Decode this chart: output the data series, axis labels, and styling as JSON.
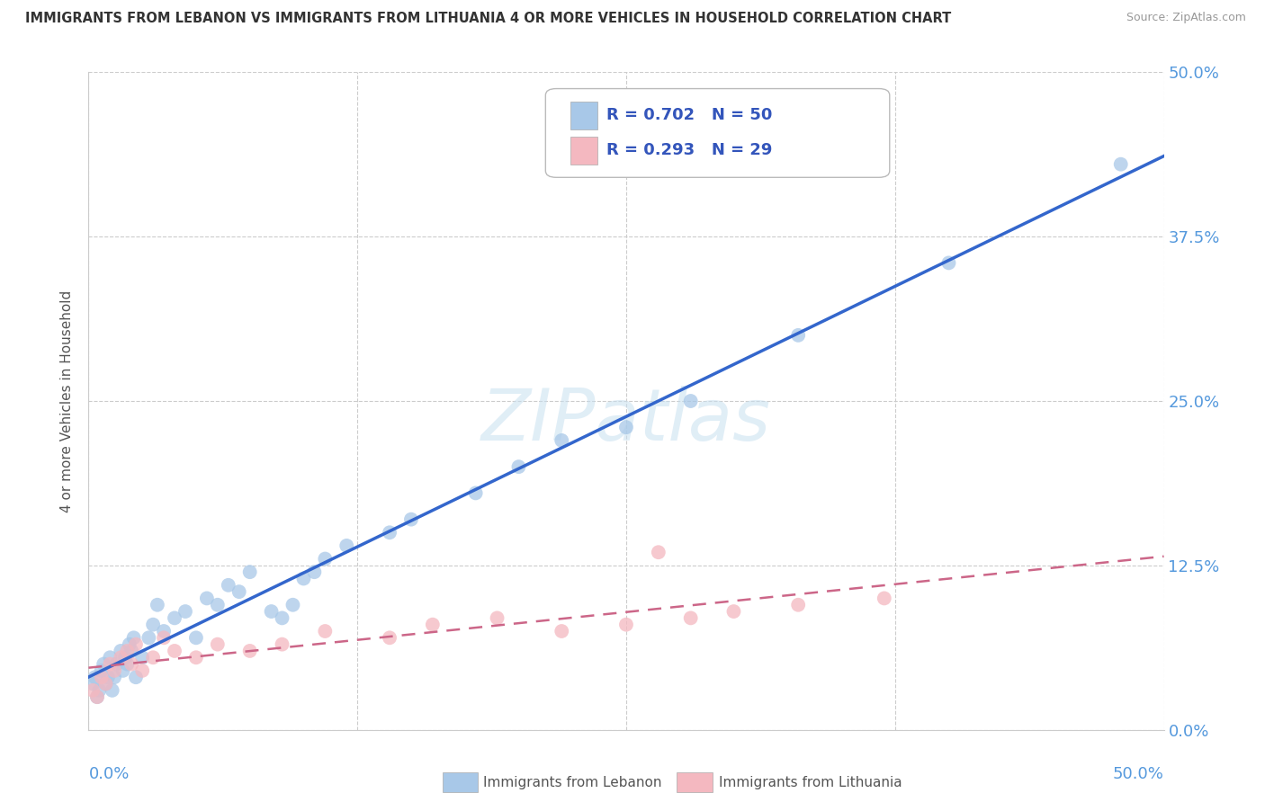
{
  "title": "IMMIGRANTS FROM LEBANON VS IMMIGRANTS FROM LITHUANIA 4 OR MORE VEHICLES IN HOUSEHOLD CORRELATION CHART",
  "source": "Source: ZipAtlas.com",
  "ylabel": "4 or more Vehicles in Household",
  "ytick_vals": [
    0,
    12.5,
    25.0,
    37.5,
    50.0
  ],
  "xrange": [
    0,
    50
  ],
  "yrange": [
    0,
    50
  ],
  "legend_lebanon_R": "0.702",
  "legend_lebanon_N": "50",
  "legend_lithuania_R": "0.293",
  "legend_lithuania_N": "29",
  "legend_label_lebanon": "Immigrants from Lebanon",
  "legend_label_lithuania": "Immigrants from Lithuania",
  "color_lebanon": "#a8c8e8",
  "color_lithuania": "#f4b8c0",
  "color_trendline_lebanon": "#3366cc",
  "color_trendline_lithuania": "#cc6688",
  "watermark_text": "ZIPatlas",
  "lebanon_x": [
    0.2,
    0.3,
    0.4,
    0.5,
    0.6,
    0.7,
    0.8,
    0.9,
    1.0,
    1.1,
    1.2,
    1.3,
    1.5,
    1.6,
    1.7,
    1.8,
    1.9,
    2.0,
    2.1,
    2.2,
    2.5,
    2.8,
    3.0,
    3.2,
    3.5,
    4.0,
    4.5,
    5.0,
    5.5,
    6.0,
    6.5,
    7.0,
    7.5,
    8.5,
    9.0,
    9.5,
    10.0,
    10.5,
    11.0,
    12.0,
    14.0,
    15.0,
    18.0,
    20.0,
    22.0,
    25.0,
    28.0,
    33.0,
    40.0,
    48.0
  ],
  "lebanon_y": [
    3.5,
    4.0,
    2.5,
    3.0,
    4.5,
    5.0,
    3.5,
    4.0,
    5.5,
    3.0,
    4.0,
    5.0,
    6.0,
    4.5,
    5.5,
    5.0,
    6.5,
    6.0,
    7.0,
    4.0,
    5.5,
    7.0,
    8.0,
    9.5,
    7.5,
    8.5,
    9.0,
    7.0,
    10.0,
    9.5,
    11.0,
    10.5,
    12.0,
    9.0,
    8.5,
    9.5,
    11.5,
    12.0,
    13.0,
    14.0,
    15.0,
    16.0,
    18.0,
    20.0,
    22.0,
    23.0,
    25.0,
    30.0,
    35.5,
    43.0
  ],
  "lithuania_x": [
    0.2,
    0.4,
    0.6,
    0.8,
    1.0,
    1.2,
    1.5,
    1.8,
    2.0,
    2.2,
    2.5,
    3.0,
    3.5,
    4.0,
    5.0,
    6.0,
    7.5,
    9.0,
    11.0,
    14.0,
    16.0,
    19.0,
    22.0,
    25.0,
    26.5,
    28.0,
    30.0,
    33.0,
    37.0
  ],
  "lithuania_y": [
    3.0,
    2.5,
    4.0,
    3.5,
    5.0,
    4.5,
    5.5,
    6.0,
    5.0,
    6.5,
    4.5,
    5.5,
    7.0,
    6.0,
    5.5,
    6.5,
    6.0,
    6.5,
    7.5,
    7.0,
    8.0,
    8.5,
    7.5,
    8.0,
    13.5,
    8.5,
    9.0,
    9.5,
    10.0
  ]
}
